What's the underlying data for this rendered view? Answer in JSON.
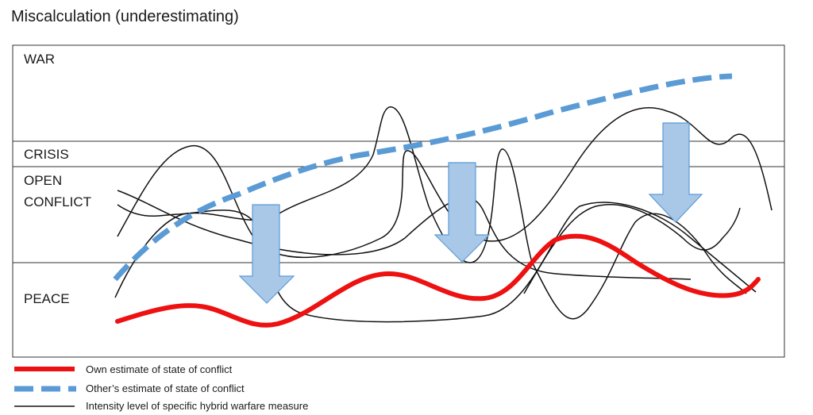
{
  "title": "Miscalculation (underestimating)",
  "zones": {
    "war": "WAR",
    "crisis": "CRISIS",
    "open_conflict_line1": "OPEN",
    "open_conflict_line2": "CONFLICT",
    "peace": "PEACE"
  },
  "legend": {
    "own_estimate": "Own estimate of state of conflict",
    "others_estimate": "Other’s estimate of state of conflict",
    "intensity": "Intensity level of specific hybrid warfare measure"
  },
  "colors": {
    "own_estimate": "#ee1111",
    "others_estimate": "#5b9bd5",
    "intensity": "#111111",
    "arrow_fill": "#a9c8e8",
    "arrow_stroke": "#5b9bd5"
  }
}
